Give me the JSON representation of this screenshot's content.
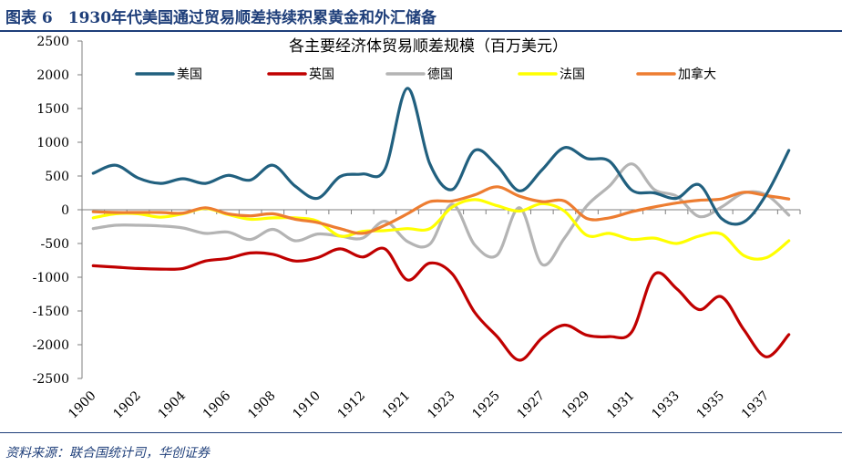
{
  "header": {
    "title": "图表 6　1930年代美国通过贸易顺差持续积累黄金和外汇储备"
  },
  "footer": {
    "source": "资料来源：联合国统计司，华创证券"
  },
  "chart_data": {
    "type": "line",
    "title": "各主要经济体贸易顺差规模（百万美元）",
    "xlabel": "",
    "ylabel": "",
    "ylim": [
      -2500,
      2500
    ],
    "y_ticks": [
      2500,
      2000,
      1500,
      1000,
      500,
      0,
      -500,
      -1000,
      -1500,
      -2000,
      -2500
    ],
    "x_tick_labels": [
      "1900",
      "1902",
      "1904",
      "1906",
      "1908",
      "1910",
      "1912",
      "1921",
      "1923",
      "1925",
      "1927",
      "1929",
      "1931",
      "1933",
      "1935",
      "1937"
    ],
    "categories": [
      "1900",
      "1901",
      "1902",
      "1903",
      "1904",
      "1905",
      "1906",
      "1907",
      "1908",
      "1909",
      "1910",
      "1911",
      "1912",
      "1913",
      "1921",
      "1922",
      "1923",
      "1924",
      "1925",
      "1926",
      "1927",
      "1928",
      "1929",
      "1930",
      "1931",
      "1932",
      "1933",
      "1934",
      "1935",
      "1936",
      "1937",
      "1938"
    ],
    "legend_position": "top",
    "grid": false,
    "series": [
      {
        "name": "美国",
        "color": "#21607f",
        "values": [
          540,
          660,
          470,
          390,
          460,
          390,
          510,
          440,
          660,
          350,
          170,
          490,
          530,
          600,
          1800,
          680,
          300,
          880,
          650,
          280,
          590,
          920,
          760,
          720,
          290,
          250,
          170,
          370,
          -130,
          -180,
          230,
          880
        ]
      },
      {
        "name": "英国",
        "color": "#c00000",
        "values": [
          -830,
          -850,
          -870,
          -880,
          -870,
          -760,
          -720,
          -640,
          -660,
          -760,
          -710,
          -580,
          -700,
          -580,
          -1040,
          -790,
          -950,
          -1520,
          -1880,
          -2230,
          -1900,
          -1710,
          -1860,
          -1880,
          -1810,
          -960,
          -1170,
          -1480,
          -1290,
          -1780,
          -2180,
          -1850
        ]
      },
      {
        "name": "德国",
        "color": "#b4b4b4",
        "values": [
          -280,
          -230,
          -230,
          -240,
          -270,
          -350,
          -330,
          -440,
          -290,
          -460,
          -360,
          -390,
          -420,
          -170,
          -470,
          -510,
          80,
          -520,
          -670,
          30,
          -810,
          -420,
          60,
          350,
          680,
          300,
          200,
          -100,
          40,
          250,
          220,
          -80
        ]
      },
      {
        "name": "法国",
        "color": "#ffff00",
        "values": [
          -120,
          -60,
          -60,
          -110,
          -60,
          20,
          -70,
          -140,
          -120,
          -120,
          -170,
          -390,
          -320,
          -310,
          -280,
          -280,
          40,
          150,
          60,
          -20,
          90,
          -20,
          -380,
          -350,
          -440,
          -420,
          -500,
          -390,
          -360,
          -680,
          -710,
          -460
        ]
      },
      {
        "name": "加拿大",
        "color": "#ed7d31",
        "values": [
          -30,
          -40,
          -40,
          -40,
          -50,
          30,
          -60,
          -90,
          -60,
          -140,
          -190,
          -280,
          -350,
          -230,
          -60,
          120,
          130,
          220,
          340,
          200,
          120,
          130,
          -130,
          -120,
          -30,
          40,
          100,
          140,
          160,
          260,
          210,
          160
        ]
      }
    ]
  }
}
